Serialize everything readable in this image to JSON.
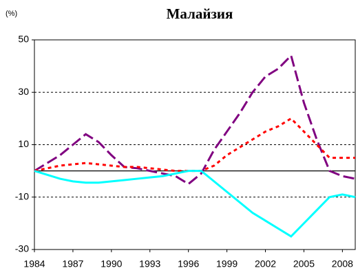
{
  "chart_data": {
    "type": "line",
    "title": "Малайзия",
    "unit_label": "(%)",
    "x": [
      1984,
      1985,
      1986,
      1987,
      1988,
      1989,
      1990,
      1991,
      1992,
      1993,
      1994,
      1995,
      1996,
      1997,
      1998,
      1999,
      2000,
      2001,
      2002,
      2003,
      2004,
      2005,
      2006,
      2007,
      2008,
      2009
    ],
    "xlim": [
      1984,
      2009
    ],
    "xticks": [
      1984,
      1987,
      1990,
      1993,
      1996,
      1999,
      2002,
      2005,
      2008
    ],
    "ylim": [
      -30,
      50
    ],
    "yticks": [
      -30,
      -10,
      10,
      30,
      50
    ],
    "grid": true,
    "series": [
      {
        "color": "#800080",
        "dash": "long",
        "values": [
          0,
          3,
          6,
          10,
          14,
          11,
          6,
          1.5,
          1,
          0,
          -1,
          -2,
          -5,
          -1,
          8,
          15,
          22,
          30,
          36,
          39,
          44,
          26,
          12,
          0,
          -2,
          -3
        ]
      },
      {
        "color": "#ff0000",
        "dash": "short",
        "values": [
          0,
          1,
          2,
          2.5,
          3,
          2.5,
          2,
          1.5,
          1.5,
          1,
          0.5,
          0,
          0,
          0,
          2,
          6,
          9,
          12,
          15,
          17,
          20,
          15,
          10,
          5,
          5,
          5
        ]
      },
      {
        "color": "#00ffff",
        "dash": "solid",
        "values": [
          0,
          -1.5,
          -3,
          -4,
          -4.5,
          -4.5,
          -4,
          -3.5,
          -3,
          -2.5,
          -2,
          -1,
          0,
          0,
          -4,
          -8,
          -12,
          -16,
          -19,
          -22,
          -25,
          -20,
          -15,
          -10,
          -9,
          -10
        ]
      }
    ]
  }
}
